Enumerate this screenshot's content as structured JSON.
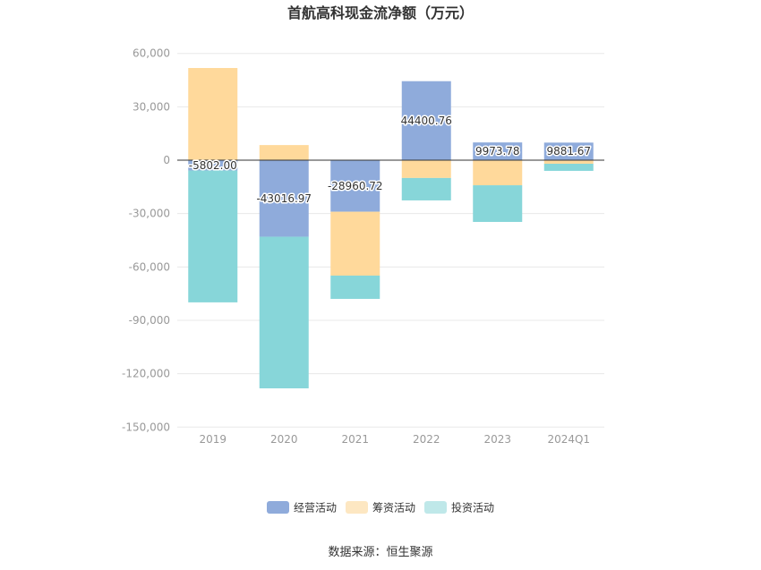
{
  "chart_data": {
    "type": "bar",
    "stacked": true,
    "title": "首航高科现金流净额（万元）",
    "categories": [
      "2019",
      "2020",
      "2021",
      "2022",
      "2023",
      "2024Q1"
    ],
    "ylim": [
      -150000,
      60000
    ],
    "yticks": [
      60000,
      30000,
      0,
      -30000,
      -60000,
      -90000,
      -120000,
      -150000
    ],
    "ytick_labels": [
      "60,000",
      "30,000",
      "0",
      "-30,000",
      "-60,000",
      "-90,000",
      "-120,000",
      "-150,000"
    ],
    "grid": true,
    "legend_position": "bottom-center",
    "series": [
      {
        "name": "经营活动",
        "color": "#8fabdb",
        "legend_color": "#8fabdb",
        "values": [
          -5802.0,
          -43016.97,
          -28960.72,
          44400.76,
          9973.78,
          9881.67
        ],
        "labels": [
          "-5802.00",
          "-43016.97",
          "-28960.72",
          "44400.76",
          "9973.78",
          "9881.67"
        ]
      },
      {
        "name": "筹资活动",
        "color": "#ffd99b",
        "legend_color": "#fde7c2",
        "values": [
          51800,
          8500,
          -35900,
          -10000,
          -14100,
          -2000
        ]
      },
      {
        "name": "投资活动",
        "color": "#87d6d9",
        "legend_color": "#bfe8e9",
        "values": [
          -74100,
          -85200,
          -13100,
          -12600,
          -20600,
          -4000
        ]
      }
    ]
  },
  "source": "数据来源：恒生聚源"
}
